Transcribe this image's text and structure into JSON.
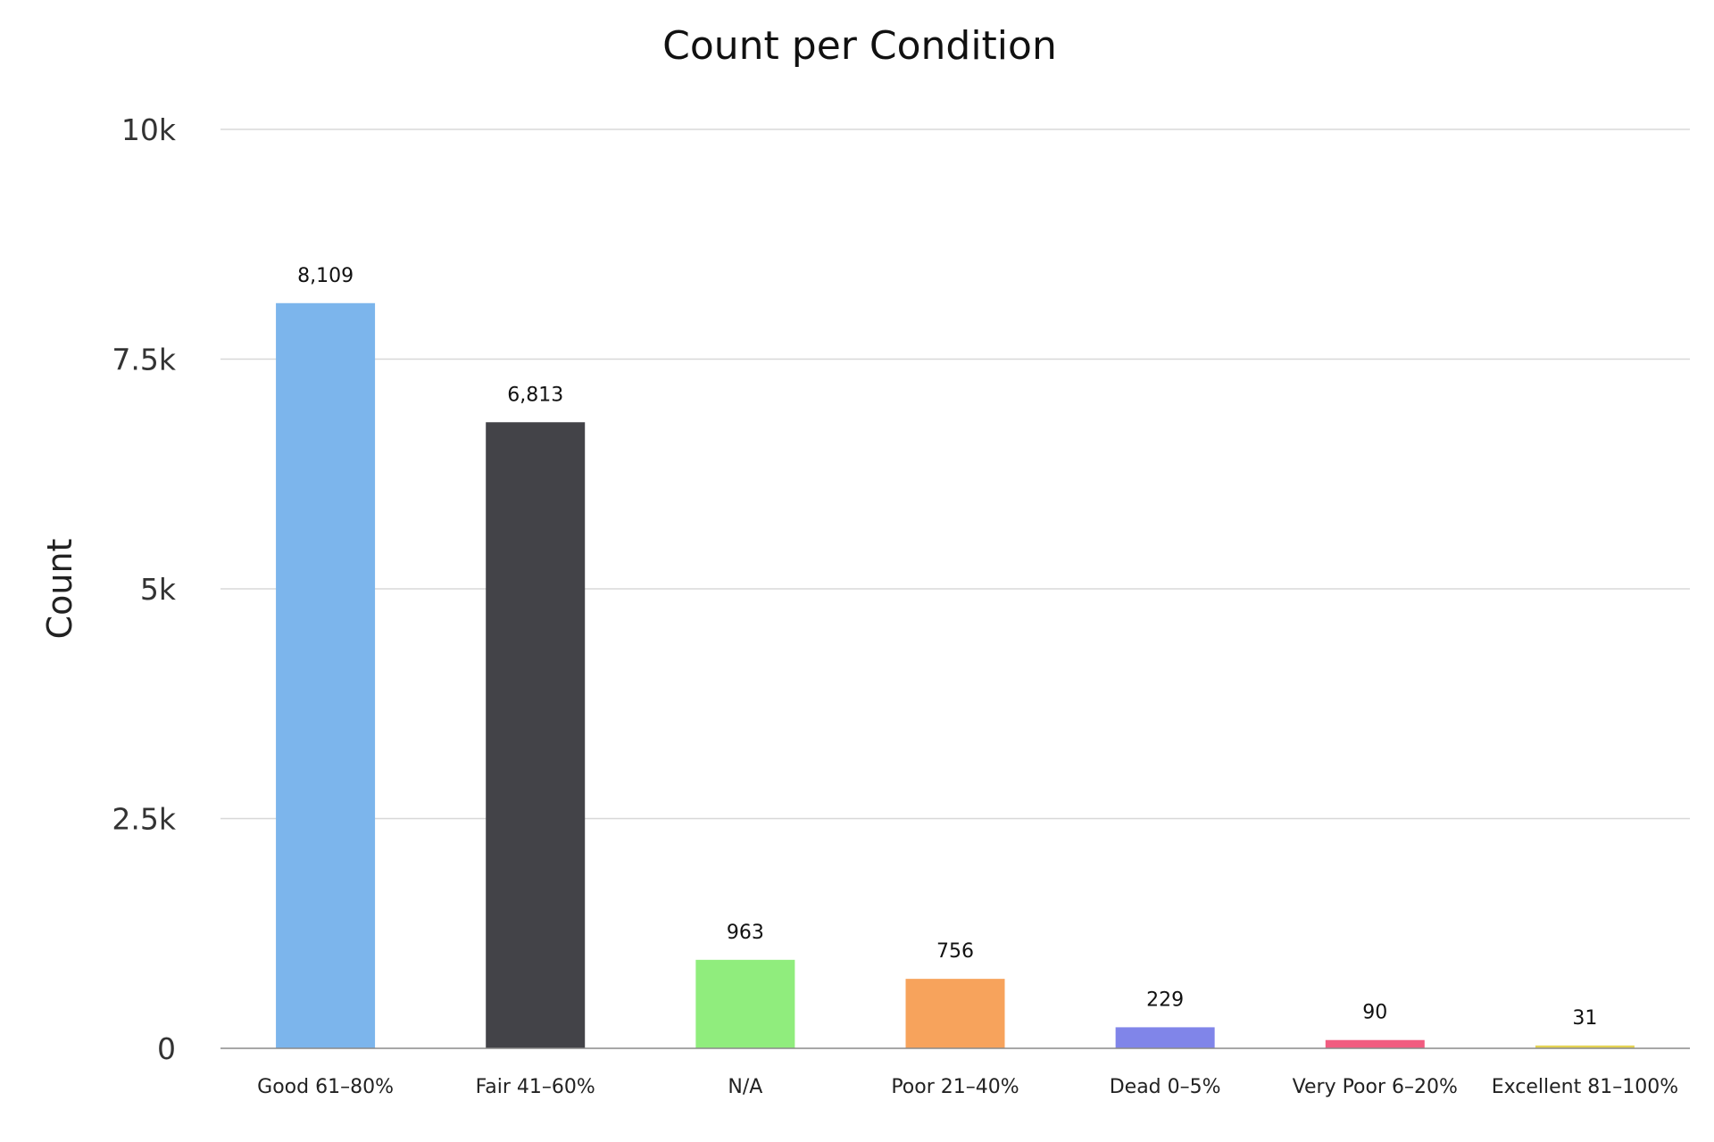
{
  "chart_data": {
    "type": "bar",
    "title": "Count per Condition",
    "xlabel": "",
    "ylabel": "Count",
    "ylim": [
      0,
      10000
    ],
    "y_ticks": [
      0,
      2500,
      5000,
      7500,
      10000
    ],
    "y_tick_labels": [
      "0",
      "2.5k",
      "5k",
      "7.5k",
      "10k"
    ],
    "grid": true,
    "legend": "none",
    "categories": [
      "Good 61–80%",
      "Fair 41–60%",
      "N/A",
      "Poor 21–40%",
      "Dead 0–5%",
      "Very Poor 6–20%",
      "Excellent 81–100%"
    ],
    "values": [
      8109,
      6813,
      963,
      756,
      229,
      90,
      31
    ],
    "value_labels": [
      "8,109",
      "6,813",
      "963",
      "756",
      "229",
      "90",
      "31"
    ],
    "colors": [
      "#7cb5ec",
      "#434348",
      "#90ed7d",
      "#f7a35c",
      "#8085e9",
      "#f15c80",
      "#e4d354"
    ]
  }
}
